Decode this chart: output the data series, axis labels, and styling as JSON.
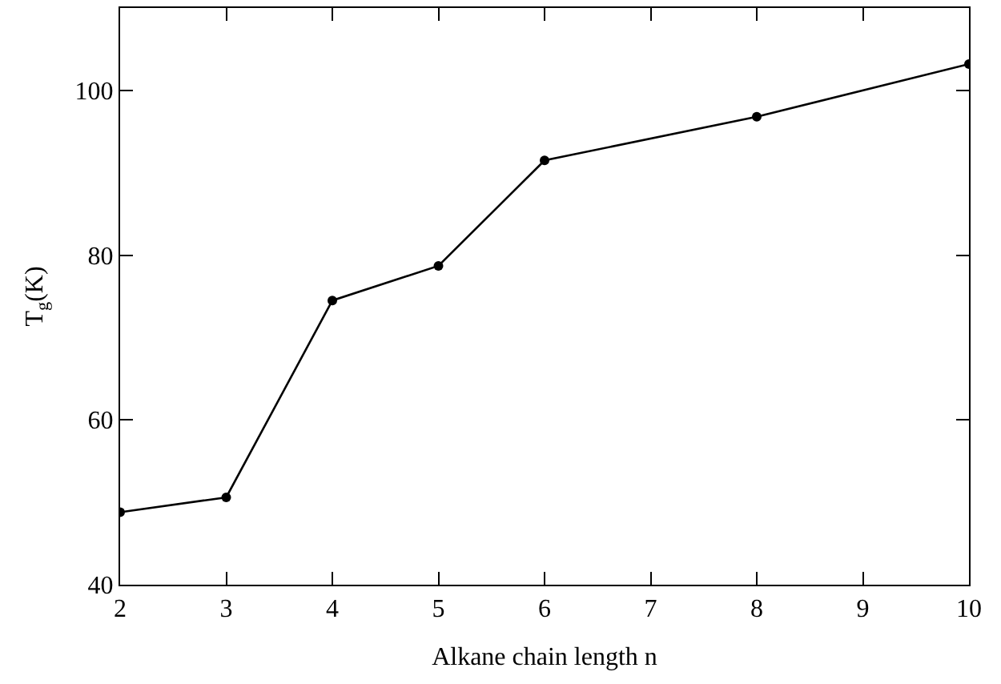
{
  "chart_data": {
    "type": "line",
    "xlabel": "Alkane chain length n",
    "ylabel": "T$_{g}$(K)",
    "x": [
      2,
      3,
      4,
      5,
      6,
      8,
      10
    ],
    "series": [
      {
        "color": "#000000",
        "values": [
          48.8,
          50.6,
          74.5,
          78.7,
          91.5,
          96.8,
          103.2
        ]
      }
    ],
    "xlim": [
      2,
      10
    ],
    "xticks": [
      2,
      3,
      4,
      5,
      6,
      7,
      8,
      9,
      10
    ],
    "ylim": [
      40,
      110
    ],
    "yticks": [
      40,
      60,
      80,
      100
    ],
    "legend": false,
    "marker": "circle",
    "line_style": "solid"
  }
}
